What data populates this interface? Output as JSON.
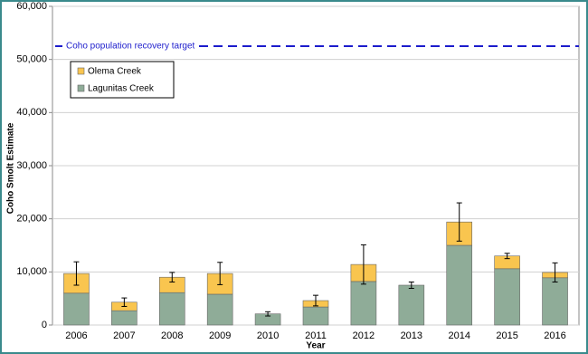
{
  "chart_data": {
    "type": "stacked_bar",
    "x_label": "Year",
    "y_label": "Coho Smolt Estimate",
    "categories": [
      "2006",
      "2007",
      "2008",
      "2009",
      "2010",
      "2011",
      "2012",
      "2013",
      "2014",
      "2015",
      "2016"
    ],
    "series": [
      {
        "name": "Lagunitas Creek",
        "color": "#8fac98",
        "values": [
          6000,
          2700,
          6100,
          5800,
          2100,
          3400,
          8200,
          7500,
          15000,
          10600,
          8900
        ]
      },
      {
        "name": "Olema Creek",
        "color": "#f9c54f",
        "values": [
          3700,
          1600,
          2900,
          3900,
          0,
          1200,
          3200,
          0,
          4400,
          2400,
          1000
        ]
      }
    ],
    "errors": [
      2200,
      800,
      900,
      2100,
      400,
      1000,
      3700,
      600,
      3600,
      500,
      1800
    ],
    "target": {
      "value": 52500,
      "label": "Coho population recovery target",
      "color": "#1c1ccc"
    },
    "ylim": [
      0,
      60000
    ],
    "yticks": [
      0,
      {
        "value": 10000,
        "label": "10,000"
      },
      {
        "value": 20000,
        "label": "20,000"
      },
      {
        "value": 30000,
        "label": "30,000"
      },
      {
        "value": 40000,
        "label": "40,000"
      },
      {
        "value": 50000,
        "label": "50,000"
      },
      {
        "value": 60000,
        "label": "60,000"
      }
    ],
    "grid": true
  }
}
